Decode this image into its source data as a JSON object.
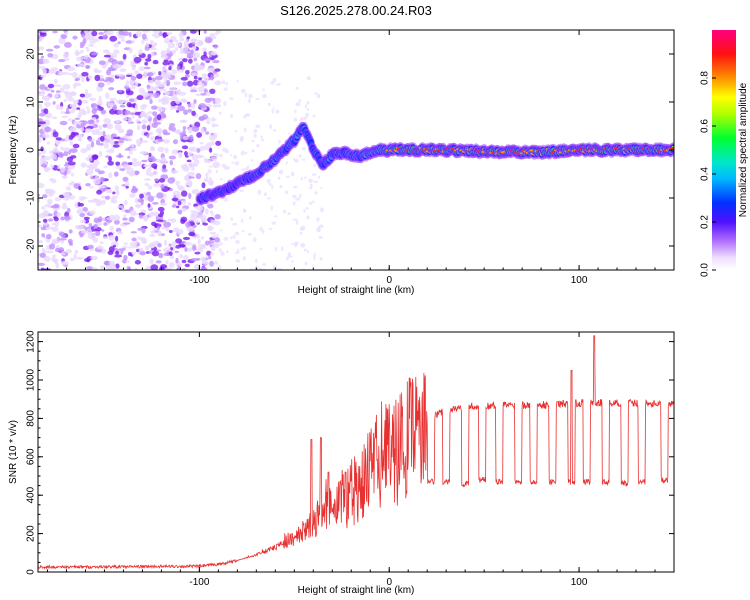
{
  "title": "S126.2025.278.00.24.R03",
  "chart_data": [
    {
      "type": "heatmap",
      "name": "spectrogram",
      "xlabel": "Height of straight line (km)",
      "ylabel": "Frequency (Hz)",
      "xlim": [
        -185,
        150
      ],
      "ylim": [
        -25,
        25
      ],
      "xticks": [
        -100,
        0,
        100
      ],
      "yticks": [
        -20,
        -10,
        0,
        10,
        20
      ],
      "colorbar": {
        "label": "Normalized spectral amplitude",
        "range": [
          0,
          1
        ],
        "ticks": [
          "0.0",
          "0.2",
          "0.4",
          "0.6",
          "0.8"
        ],
        "colors": [
          "#ffffff",
          "#e6d0ff",
          "#8a2be2",
          "#3b00ff",
          "#0040ff",
          "#00b0ff",
          "#00e5c0",
          "#00ff40",
          "#a0ff00",
          "#ffff00",
          "#ffa000",
          "#ff2020",
          "#ff0090"
        ]
      },
      "ridge": {
        "description": "main signal frequency trace vs height",
        "x": [
          -100,
          -90,
          -80,
          -70,
          -60,
          -50,
          -45,
          -40,
          -35,
          -30,
          -25,
          -20,
          -15,
          -10,
          -5,
          0,
          20,
          50,
          80,
          100,
          130,
          150
        ],
        "y": [
          -10,
          -9,
          -7,
          -5,
          -2,
          2,
          5,
          0,
          -3,
          -1,
          -0.5,
          -1,
          -1.5,
          -0.5,
          0,
          0,
          0,
          -0.3,
          -0.5,
          0,
          0,
          0
        ],
        "amplitude": [
          0.35,
          0.4,
          0.45,
          0.5,
          0.55,
          0.6,
          0.55,
          0.45,
          0.5,
          0.5,
          0.55,
          0.55,
          0.6,
          0.65,
          0.7,
          0.8,
          0.85,
          0.9,
          0.85,
          0.9,
          0.85,
          0.85
        ]
      }
    },
    {
      "type": "line",
      "name": "snr",
      "xlabel": "Height of straight line (km)",
      "ylabel": "SNR (10 * v/v)",
      "xlim": [
        -185,
        150
      ],
      "ylim": [
        0,
        1250
      ],
      "xticks": [
        -100,
        0,
        100
      ],
      "yticks": [
        0,
        200,
        400,
        600,
        800,
        1000,
        1200
      ],
      "color": "#e83030",
      "baseline": {
        "x": [
          -185,
          -100,
          -90,
          -80,
          -70,
          -60,
          -50,
          -40,
          -30,
          -20,
          -10,
          0,
          10,
          20,
          25,
          30,
          40,
          60,
          80,
          100,
          120,
          150
        ],
        "y": [
          25,
          30,
          40,
          60,
          90,
          130,
          180,
          260,
          350,
          450,
          550,
          650,
          720,
          780,
          820,
          840,
          860,
          870,
          870,
          880,
          880,
          880
        ]
      },
      "dips": {
        "x": [
          22,
          30,
          40,
          49,
          58,
          68,
          76,
          86,
          96,
          104,
          114,
          124,
          133,
          145
        ],
        "y": [
          470,
          470,
          460,
          480,
          470,
          470,
          470,
          470,
          470,
          470,
          470,
          460,
          470,
          480
        ]
      },
      "spikes": {
        "x": [
          -41,
          -36,
          -32,
          -23,
          96,
          108
        ],
        "y": [
          690,
          700,
          520,
          520,
          1050,
          1230
        ]
      }
    }
  ]
}
